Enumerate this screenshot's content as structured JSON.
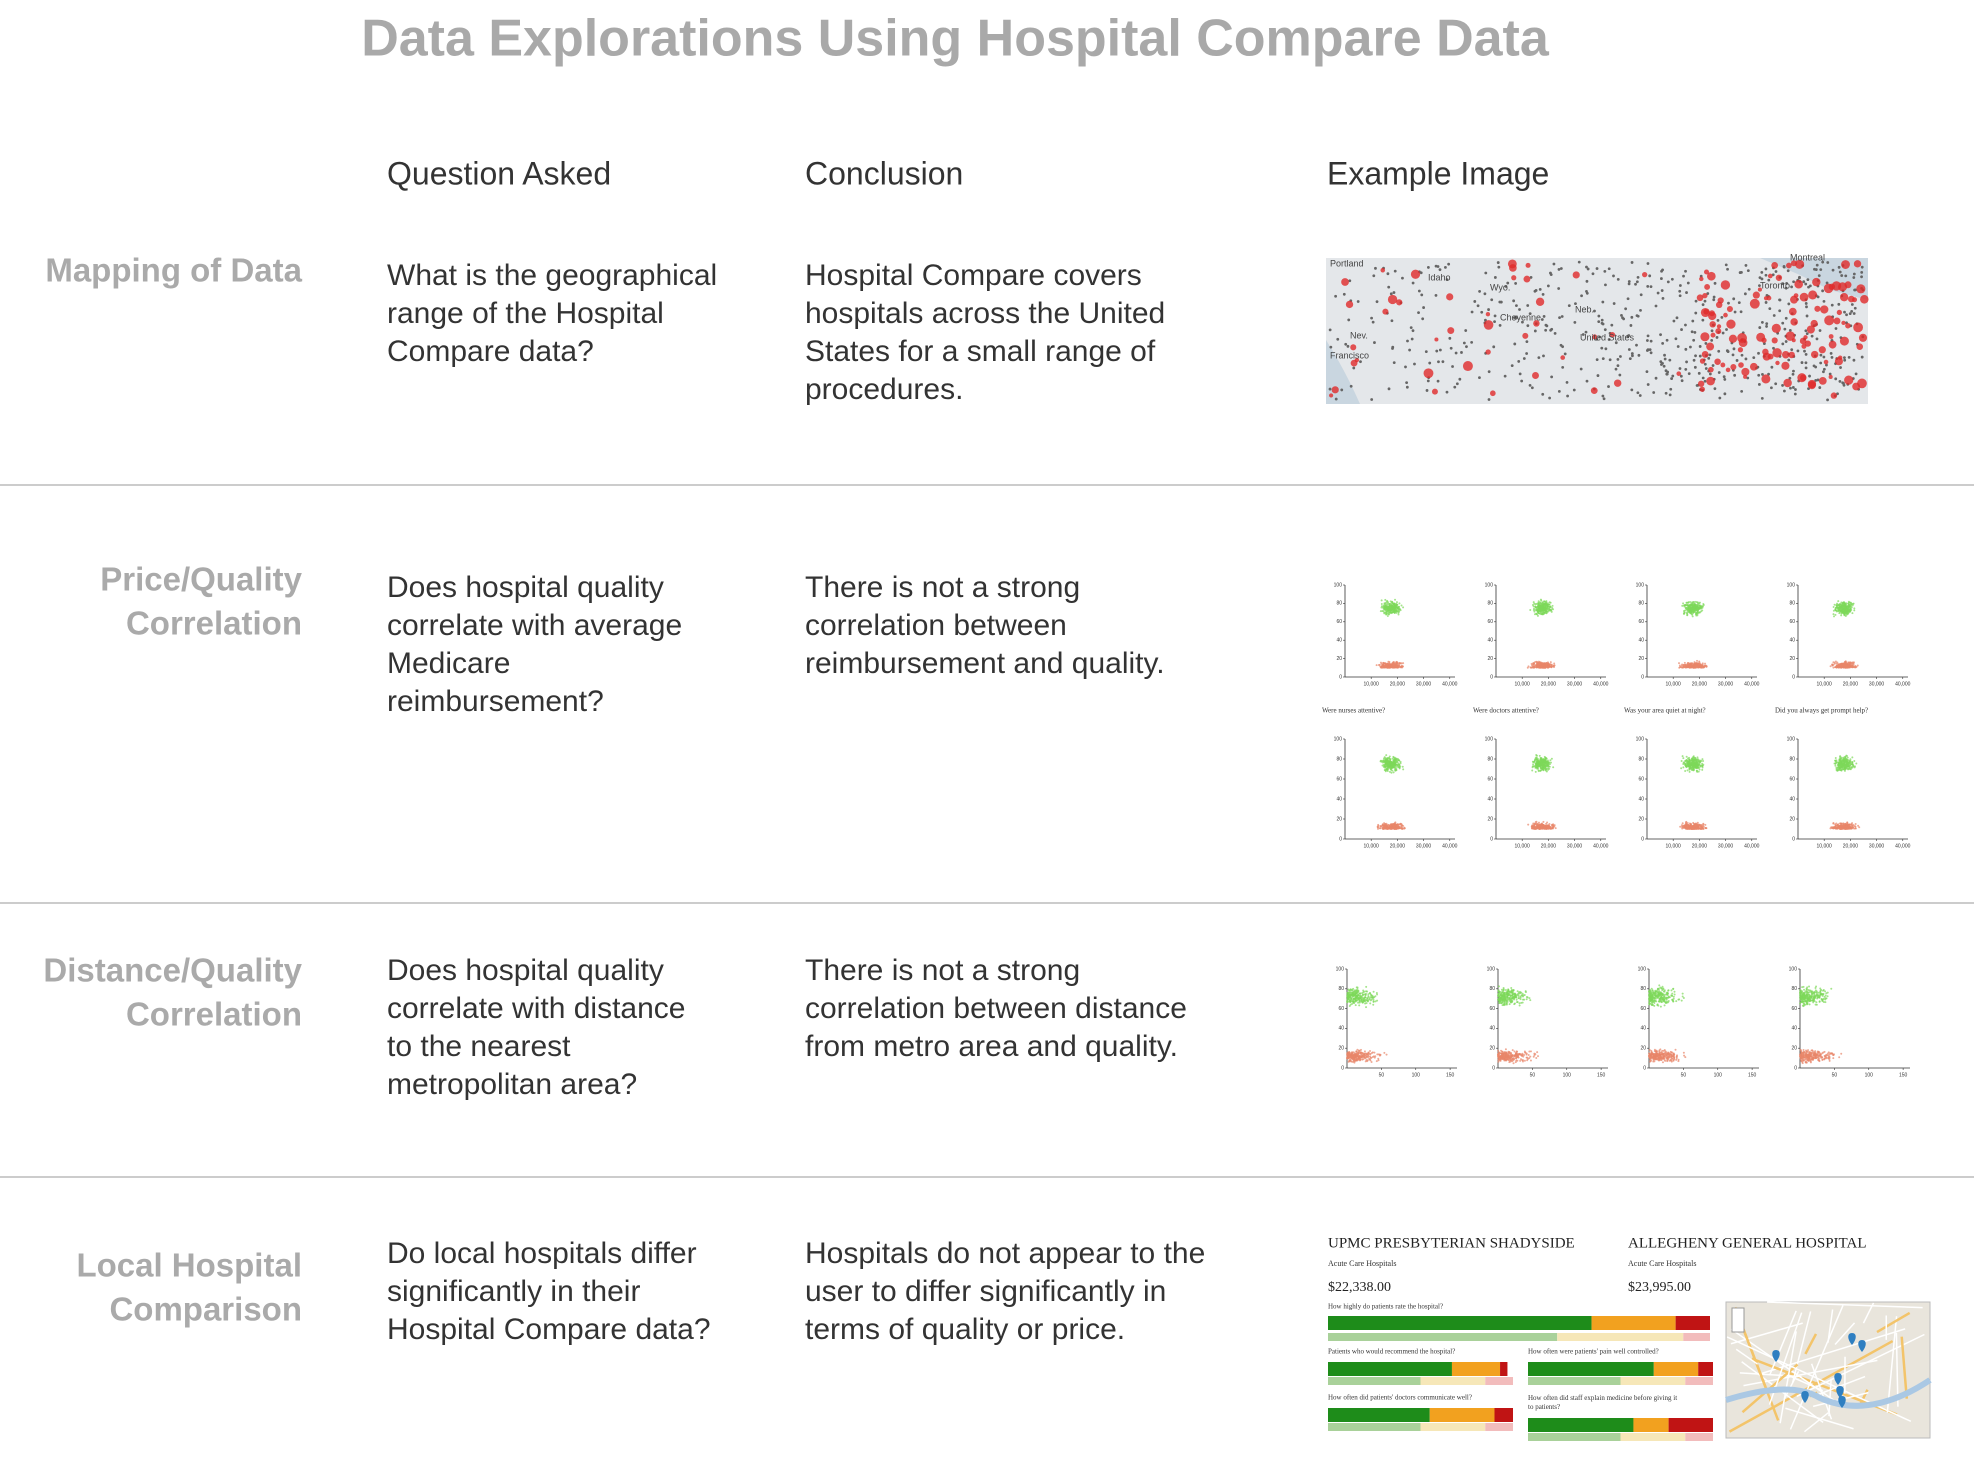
{
  "header": {
    "title": "Data Explorations Using Hospital Compare Data"
  },
  "columns": [
    "Question Asked",
    "Conclusion",
    "Example Image"
  ],
  "rows": [
    {
      "label": [
        "Mapping of Data"
      ],
      "question": [
        "What is the geographical",
        "range of the Hospital",
        "Compare data?"
      ],
      "conclusion": [
        "Hospital Compare covers",
        "hospitals across the United",
        "States for a small range of",
        "procedures."
      ]
    },
    {
      "label": [
        "Price/Quality",
        "Correlation"
      ],
      "question": [
        "Does hospital quality",
        "correlate with average",
        "Medicare",
        "reimbursement?"
      ],
      "conclusion": [
        "There is not a strong",
        "correlation between",
        "reimbursement and quality."
      ]
    },
    {
      "label": [
        "Distance/Quality",
        "Correlation"
      ],
      "question": [
        "Does hospital quality",
        "correlate with distance",
        "to the nearest",
        "metropolitan area?"
      ],
      "conclusion": [
        "There is not a strong",
        "correlation between distance",
        "from metro area and quality."
      ]
    },
    {
      "label": [
        "Local Hospital",
        "Comparison"
      ],
      "question": [
        "Do local hospitals differ",
        "significantly in their",
        "Hospital Compare data?"
      ],
      "conclusion": [
        "Hospitals do not appear to the",
        "user to differ significantly in",
        "terms of quality or price."
      ]
    }
  ],
  "map_labels": [
    "Portland",
    "Idaho",
    "Wyo.",
    "Cheyenne",
    "Nev.",
    "Neb.",
    "United States",
    "Francisco",
    "Toronto",
    "Montreal"
  ],
  "price_plots": {
    "titles": [
      "Were nurses attentive?",
      "Were doctors attentive?",
      "Was your area quiet at night?",
      "Did you always get prompt help?"
    ],
    "yticks": [
      0,
      20,
      40,
      60,
      80,
      100
    ],
    "xlim": [
      0,
      42000
    ],
    "xticks": [
      {
        "value": 10000,
        "label": "10,000"
      },
      {
        "value": 20000,
        "label": "20,000"
      },
      {
        "value": 30000,
        "label": "30,000"
      },
      {
        "value": 40000,
        "label": "40,000"
      }
    ]
  },
  "distance_plots": {
    "yticks": [
      0,
      20,
      40,
      60,
      80,
      100
    ],
    "xlim": [
      0,
      160
    ],
    "xticks": [
      50,
      100,
      150
    ]
  },
  "hospitals": [
    {
      "name": "UPMC PRESBYTERIAN SHADYSIDE",
      "type": "Acute Care Hospitals",
      "price": "$22,338.00"
    },
    {
      "name": "ALLEGHENY GENERAL HOSPITAL",
      "type": "Acute Care Hospitals",
      "price": "$23,995.00"
    }
  ],
  "survey_questions": [
    "How highly do patients rate the hospital?",
    "Patients who would recommend the hospital?",
    "How often were patients' pain well controlled?",
    "How often did patients' doctors communicate well?",
    "How often did staff explain medicine before giving it to patients?"
  ]
}
